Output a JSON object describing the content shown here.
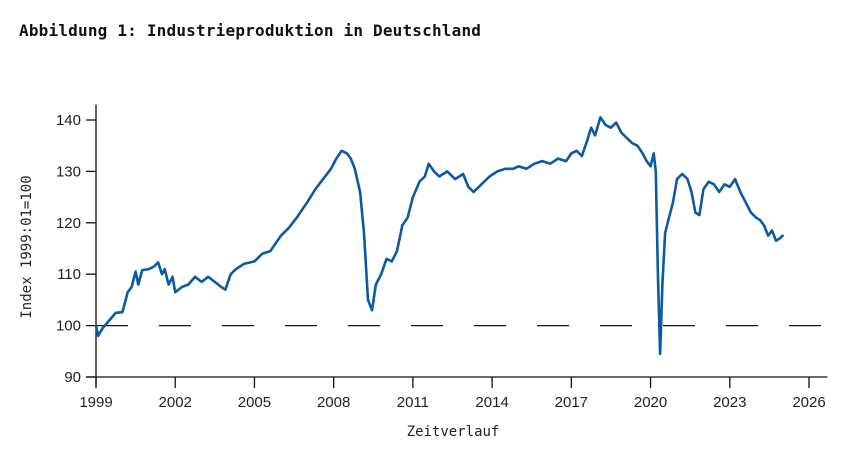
{
  "page": {
    "title": "Abbildung 1: Industrieproduktion in Deutschland"
  },
  "chart_data": {
    "type": "line",
    "title": "Abbildung 1: Industrieproduktion in Deutschland",
    "xlabel": "Zeitverlauf",
    "ylabel": "Index 1999:01=100",
    "xlim": [
      1999,
      2026.7
    ],
    "ylim": [
      90,
      143
    ],
    "x_ticks": [
      1999,
      2002,
      2005,
      2008,
      2011,
      2014,
      2017,
      2020,
      2023,
      2026
    ],
    "x_tick_labels": [
      "1999",
      "2002",
      "2005",
      "2008",
      "2011",
      "2014",
      "2017",
      "2020",
      "2023",
      "2026"
    ],
    "y_ticks": [
      90,
      100,
      110,
      120,
      130,
      140
    ],
    "y_tick_labels": [
      "90",
      "100",
      "110",
      "120",
      "130",
      "140"
    ],
    "grid": false,
    "reference_line": {
      "value": 100,
      "style": "dashed",
      "color": "#111111"
    },
    "colors": {
      "line": "#0b5aa2",
      "axis": "#111111"
    },
    "series": [
      {
        "name": "Industrieproduktion",
        "x": [
          1999.0,
          1999.08,
          1999.25,
          1999.5,
          1999.75,
          2000.0,
          2000.2,
          2000.35,
          2000.5,
          2000.6,
          2000.75,
          2001.0,
          2001.2,
          2001.35,
          2001.5,
          2001.6,
          2001.75,
          2001.9,
          2002.0,
          2002.25,
          2002.5,
          2002.75,
          2003.0,
          2003.25,
          2003.5,
          2003.75,
          2003.9,
          2004.1,
          2004.3,
          2004.6,
          2005.0,
          2005.3,
          2005.6,
          2006.0,
          2006.3,
          2006.6,
          2007.0,
          2007.3,
          2007.6,
          2007.9,
          2008.1,
          2008.3,
          2008.5,
          2008.65,
          2008.8,
          2009.0,
          2009.15,
          2009.3,
          2009.45,
          2009.6,
          2009.8,
          2010.0,
          2010.2,
          2010.4,
          2010.6,
          2010.8,
          2011.0,
          2011.25,
          2011.45,
          2011.6,
          2011.8,
          2012.0,
          2012.3,
          2012.6,
          2012.9,
          2013.1,
          2013.3,
          2013.6,
          2013.9,
          2014.2,
          2014.5,
          2014.8,
          2015.0,
          2015.3,
          2015.6,
          2015.9,
          2016.2,
          2016.5,
          2016.8,
          2017.0,
          2017.2,
          2017.4,
          2017.6,
          2017.75,
          2017.9,
          2018.1,
          2018.3,
          2018.5,
          2018.7,
          2018.9,
          2019.1,
          2019.3,
          2019.5,
          2019.7,
          2019.85,
          2020.0,
          2020.12,
          2020.2,
          2020.28,
          2020.36,
          2020.45,
          2020.55,
          2020.7,
          2020.85,
          2021.0,
          2021.2,
          2021.4,
          2021.55,
          2021.7,
          2021.85,
          2022.0,
          2022.2,
          2022.4,
          2022.6,
          2022.8,
          2023.0,
          2023.2,
          2023.4,
          2023.6,
          2023.8,
          2024.0,
          2024.15,
          2024.3,
          2024.45,
          2024.6,
          2024.75,
          2024.9,
          2025.0
        ],
        "values": [
          100.0,
          98.0,
          99.5,
          101.0,
          102.5,
          102.6,
          106.5,
          107.5,
          110.5,
          108.0,
          110.8,
          111.0,
          111.5,
          112.3,
          110.0,
          111.0,
          108.0,
          109.5,
          106.5,
          107.5,
          108.0,
          109.5,
          108.5,
          109.5,
          108.5,
          107.5,
          107.0,
          110.0,
          111.0,
          112.0,
          112.5,
          114.0,
          114.5,
          117.5,
          119.0,
          121.0,
          124.0,
          126.5,
          128.5,
          130.5,
          132.5,
          134.0,
          133.5,
          132.5,
          130.5,
          126.0,
          118.0,
          105.0,
          103.0,
          108.0,
          110.0,
          113.0,
          112.5,
          114.5,
          119.5,
          121.0,
          125.0,
          128.0,
          129.0,
          131.5,
          130.0,
          129.0,
          130.0,
          128.5,
          129.5,
          127.0,
          126.0,
          127.5,
          129.0,
          130.0,
          130.5,
          130.5,
          131.0,
          130.5,
          131.5,
          132.0,
          131.5,
          132.5,
          132.0,
          133.5,
          134.0,
          133.0,
          136.0,
          138.5,
          137.0,
          140.5,
          139.0,
          138.5,
          139.5,
          137.5,
          136.5,
          135.5,
          135.0,
          133.5,
          132.0,
          131.0,
          133.5,
          130.0,
          110.0,
          94.5,
          108.0,
          118.0,
          121.0,
          124.0,
          128.5,
          129.5,
          128.5,
          126.0,
          122.0,
          121.5,
          126.5,
          128.0,
          127.5,
          126.0,
          127.5,
          127.0,
          128.5,
          126.0,
          124.0,
          122.0,
          121.0,
          120.5,
          119.5,
          117.5,
          118.5,
          116.5,
          117.0,
          117.5
        ]
      }
    ]
  }
}
